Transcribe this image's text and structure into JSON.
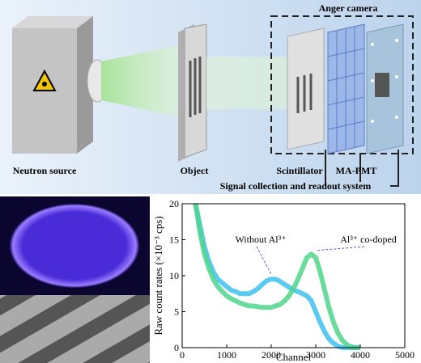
{
  "diagram": {
    "anger_camera": "Anger camera",
    "neutron_source": "Neutron source",
    "object": "Object",
    "scintillator": "Scintillator",
    "ma_pmt": "MA-PMT",
    "signal": "Signal collection and readout system"
  },
  "chart_data": {
    "type": "line",
    "xlabel": "Channel",
    "ylabel": "Raw count rates (×10⁻³ cps)",
    "x": [
      300,
      400,
      500,
      600,
      700,
      800,
      900,
      1000,
      1100,
      1200,
      1300,
      1400,
      1500,
      1600,
      1700,
      1800,
      1900,
      2000,
      2100,
      2200,
      2300,
      2400,
      2500,
      2600,
      2700,
      2800,
      2900,
      3000,
      3100,
      3200,
      3300,
      3400,
      3500,
      3600,
      3700,
      3800,
      3900,
      4000
    ],
    "series": [
      {
        "name": "Without Al³⁺",
        "color": "#3ec1f0",
        "values": [
          20,
          17,
          14,
          12,
          10.5,
          9.5,
          9,
          8.5,
          8,
          7.8,
          7.5,
          7.5,
          7.5,
          7.8,
          8.2,
          8.8,
          9.3,
          9.5,
          9.5,
          9.2,
          8.8,
          8.4,
          8,
          7.8,
          7.5,
          7.2,
          6.5,
          5,
          3.5,
          2.2,
          1.2,
          0.6,
          0.2,
          0,
          0,
          0,
          0,
          0
        ]
      },
      {
        "name": "Al³⁺ co-doped",
        "color": "#4fd68a",
        "values": [
          20,
          16,
          13,
          11,
          9.5,
          8.5,
          7.8,
          7.2,
          6.8,
          6.5,
          6.2,
          6,
          5.8,
          5.8,
          5.7,
          5.6,
          5.6,
          5.6,
          5.8,
          6,
          6.5,
          7.2,
          8.2,
          9.5,
          11,
          12.5,
          13,
          12.5,
          10.5,
          8,
          5.5,
          3.5,
          2,
          1,
          0.4,
          0.1,
          0,
          0
        ]
      }
    ],
    "xlim": [
      0,
      5000
    ],
    "xticks": [
      0,
      1000,
      2000,
      3000,
      4000,
      5000
    ],
    "ylim": [
      0,
      20
    ],
    "yticks": [
      0,
      5,
      10,
      15,
      20
    ]
  }
}
